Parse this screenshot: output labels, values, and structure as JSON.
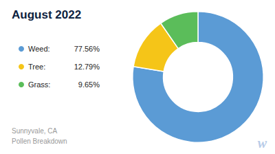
{
  "chart_data": {
    "type": "donut",
    "title": "August 2022",
    "subtitle": "Sunnyvale, CA\nPollen Breakdown",
    "categories": [
      "Weed:",
      "Tree:",
      "Grass:"
    ],
    "values": [
      77.56,
      12.79,
      9.65
    ],
    "value_labels": [
      "77.56%",
      "12.79%",
      "9.65%"
    ],
    "colors": [
      "#5B9BD5",
      "#F5C518",
      "#5BBD5A"
    ],
    "legend": "left",
    "annotations": [
      "w"
    ]
  }
}
